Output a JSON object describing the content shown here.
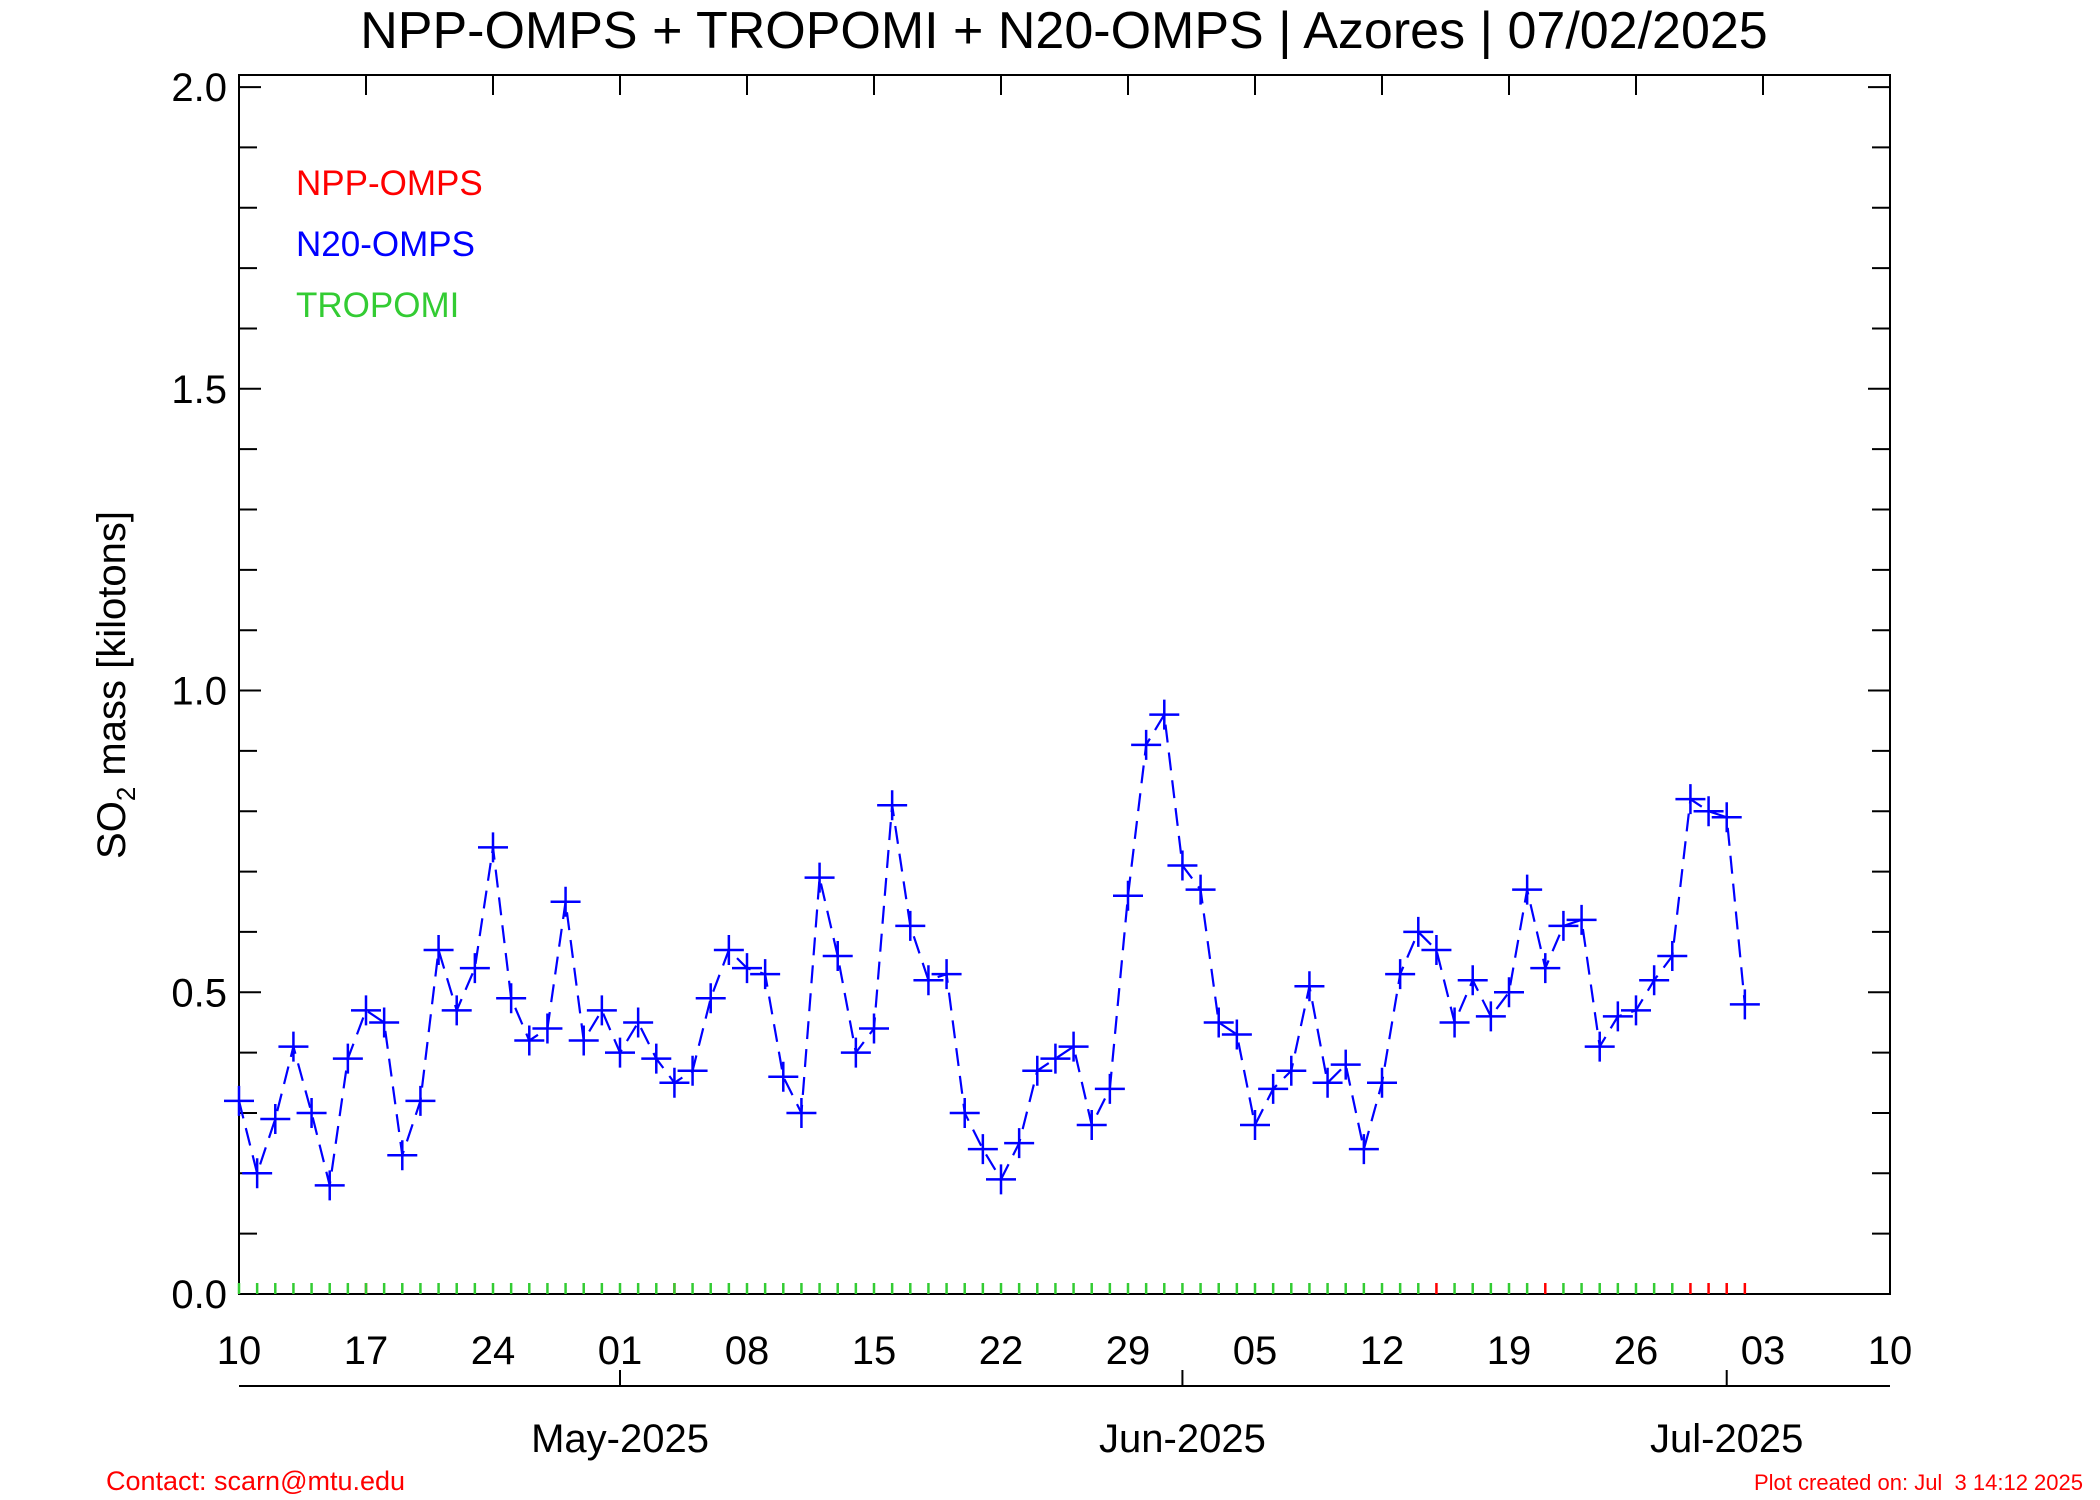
{
  "chart_data": {
    "type": "line",
    "title": "NPP-OMPS + TROPOMI + N20-OMPS | Azores | 07/02/2025",
    "ylabel": [
      "SO",
      "2",
      " mass [kilotons]"
    ],
    "contact": "Contact: scarn@mtu.edu",
    "created": "Plot created on: Jul  3 14:12 2025",
    "xlim": [
      "2025-04-10",
      "2025-07-10"
    ],
    "xticks": [
      {
        "value": "2025-04-10",
        "label": "10"
      },
      {
        "value": "2025-04-17",
        "label": "17"
      },
      {
        "value": "2025-04-24",
        "label": "24"
      },
      {
        "value": "2025-05-01",
        "label": "01"
      },
      {
        "value": "2025-05-08",
        "label": "08"
      },
      {
        "value": "2025-05-15",
        "label": "15"
      },
      {
        "value": "2025-05-22",
        "label": "22"
      },
      {
        "value": "2025-05-29",
        "label": "29"
      },
      {
        "value": "2025-06-05",
        "label": "05"
      },
      {
        "value": "2025-06-12",
        "label": "12"
      },
      {
        "value": "2025-06-19",
        "label": "19"
      },
      {
        "value": "2025-06-26",
        "label": "26"
      },
      {
        "value": "2025-07-03",
        "label": "03"
      },
      {
        "value": "2025-07-10",
        "label": "10"
      }
    ],
    "month_ticks": [
      {
        "value": "2025-05-01",
        "label": "May-2025"
      },
      {
        "value": "2025-06-01",
        "label": "Jun-2025"
      },
      {
        "value": "2025-07-01",
        "label": "Jul-2025"
      }
    ],
    "ylim": [
      0,
      2.02
    ],
    "yticks": [
      {
        "value": 0,
        "label": "0.0"
      },
      0.5,
      {
        "value": 1,
        "label": "1.0"
      },
      1.5,
      {
        "value": 2,
        "label": "2.0"
      }
    ],
    "yminor_ticks": [
      0.1,
      0.2,
      0.3,
      0.4,
      0.6,
      0.7,
      0.8,
      0.9,
      1.1,
      1.2,
      1.3,
      1.4,
      1.6,
      1.7,
      1.8,
      1.9
    ],
    "x": [
      "2025-04-10",
      "2025-04-11",
      "2025-04-12",
      "2025-04-13",
      "2025-04-14",
      "2025-04-15",
      "2025-04-16",
      "2025-04-17",
      "2025-04-18",
      "2025-04-19",
      "2025-04-20",
      "2025-04-21",
      "2025-04-22",
      "2025-04-23",
      "2025-04-24",
      "2025-04-25",
      "2025-04-26",
      "2025-04-27",
      "2025-04-28",
      "2025-04-29",
      "2025-04-30",
      "2025-05-01",
      "2025-05-02",
      "2025-05-03",
      "2025-05-04",
      "2025-05-05",
      "2025-05-06",
      "2025-05-07",
      "2025-05-08",
      "2025-05-09",
      "2025-05-10",
      "2025-05-11",
      "2025-05-12",
      "2025-05-13",
      "2025-05-14",
      "2025-05-15",
      "2025-05-16",
      "2025-05-17",
      "2025-05-18",
      "2025-05-19",
      "2025-05-20",
      "2025-05-21",
      "2025-05-22",
      "2025-05-23",
      "2025-05-24",
      "2025-05-25",
      "2025-05-26",
      "2025-05-27",
      "2025-05-28",
      "2025-05-29",
      "2025-05-30",
      "2025-05-31",
      "2025-06-01",
      "2025-06-02",
      "2025-06-03",
      "2025-06-04",
      "2025-06-05",
      "2025-06-06",
      "2025-06-07",
      "2025-06-08",
      "2025-06-09",
      "2025-06-10",
      "2025-06-11",
      "2025-06-12",
      "2025-06-13",
      "2025-06-14",
      "2025-06-15",
      "2025-06-16",
      "2025-06-17",
      "2025-06-18",
      "2025-06-19",
      "2025-06-20",
      "2025-06-21",
      "2025-06-22",
      "2025-06-23",
      "2025-06-24",
      "2025-06-25",
      "2025-06-26",
      "2025-06-27",
      "2025-06-28",
      "2025-06-29",
      "2025-06-30",
      "2025-07-01",
      "2025-07-02"
    ],
    "series": [
      {
        "name": "NPP-OMPS",
        "color": "#ff0000",
        "marker": "tick",
        "line": "none",
        "values": [
          null,
          null,
          null,
          null,
          null,
          null,
          null,
          0,
          null,
          null,
          null,
          null,
          null,
          null,
          null,
          null,
          null,
          null,
          null,
          null,
          null,
          null,
          null,
          null,
          0,
          null,
          null,
          null,
          null,
          null,
          null,
          null,
          null,
          null,
          null,
          null,
          null,
          null,
          null,
          null,
          null,
          null,
          null,
          null,
          null,
          null,
          null,
          null,
          null,
          null,
          null,
          null,
          null,
          null,
          null,
          null,
          null,
          null,
          null,
          null,
          null,
          null,
          null,
          null,
          null,
          null,
          0,
          null,
          null,
          null,
          null,
          null,
          0,
          null,
          null,
          null,
          null,
          null,
          null,
          null,
          0,
          0,
          0,
          0
        ]
      },
      {
        "name": "N20-OMPS",
        "color": "#0000ff",
        "marker": "plus",
        "line": "dashed",
        "values": [
          0.32,
          0.2,
          0.29,
          0.41,
          0.3,
          0.18,
          0.39,
          0.47,
          0.45,
          0.23,
          0.32,
          0.57,
          0.47,
          0.54,
          0.74,
          0.49,
          0.42,
          0.44,
          0.65,
          0.42,
          0.47,
          0.4,
          0.45,
          0.39,
          0.35,
          0.37,
          0.49,
          0.57,
          0.54,
          0.53,
          0.36,
          0.3,
          0.69,
          0.56,
          0.4,
          0.44,
          0.81,
          0.61,
          0.52,
          0.53,
          0.3,
          0.24,
          0.19,
          0.25,
          0.37,
          0.39,
          0.41,
          0.28,
          0.34,
          0.66,
          0.91,
          0.96,
          0.71,
          0.67,
          0.45,
          0.43,
          0.28,
          0.34,
          0.37,
          0.51,
          0.35,
          0.38,
          0.24,
          0.35,
          0.53,
          0.6,
          0.57,
          0.45,
          0.52,
          0.46,
          0.5,
          0.67,
          0.54,
          0.61,
          0.62,
          0.41,
          0.46,
          0.47,
          0.52,
          0.56,
          0.82,
          0.8,
          0.79,
          0.48
        ]
      },
      {
        "name": "TROPOMI",
        "color": "#33cc33",
        "marker": "tick",
        "line": "none",
        "values": [
          0,
          0,
          0,
          0,
          0,
          0,
          0,
          0,
          0,
          0,
          0,
          0,
          0,
          0,
          0,
          0,
          0,
          0,
          0,
          0,
          0,
          0,
          0,
          0,
          0,
          0,
          0,
          0,
          0,
          0,
          0,
          0,
          0,
          0,
          0,
          0,
          0,
          0,
          0,
          0,
          0,
          0,
          0,
          0,
          0,
          0,
          0,
          0,
          0,
          0,
          0,
          0,
          0,
          0,
          0,
          0,
          0,
          0,
          0,
          0,
          0,
          0,
          0,
          0,
          0,
          0,
          null,
          0,
          0,
          0,
          0,
          0,
          null,
          0,
          0,
          0,
          0,
          0,
          0,
          0,
          null,
          null,
          null,
          null
        ]
      }
    ]
  }
}
